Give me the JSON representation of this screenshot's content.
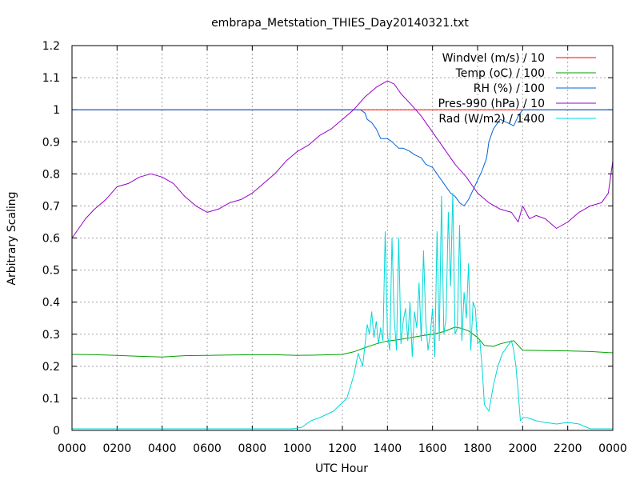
{
  "chart_data": {
    "type": "line",
    "title": "embrapa_Metstation_THIES_Day20140321.txt",
    "xlabel": "UTC Hour",
    "ylabel": "Arbitrary Scaling",
    "xlim": [
      0,
      24
    ],
    "ylim": [
      0,
      1.2
    ],
    "grid": true,
    "legend_position": "top-right",
    "x_ticks": [
      {
        "value": 0,
        "label": "0000"
      },
      {
        "value": 2,
        "label": "0200"
      },
      {
        "value": 4,
        "label": "0400"
      },
      {
        "value": 6,
        "label": "0600"
      },
      {
        "value": 8,
        "label": "0800"
      },
      {
        "value": 10,
        "label": "1000"
      },
      {
        "value": 12,
        "label": "1200"
      },
      {
        "value": 14,
        "label": "1400"
      },
      {
        "value": 16,
        "label": "1600"
      },
      {
        "value": 18,
        "label": "1800"
      },
      {
        "value": 20,
        "label": "2000"
      },
      {
        "value": 22,
        "label": "2200"
      },
      {
        "value": 24,
        "label": "0000"
      }
    ],
    "y_ticks": [
      {
        "value": 0,
        "label": "0"
      },
      {
        "value": 0.1,
        "label": "0.1"
      },
      {
        "value": 0.2,
        "label": "0.2"
      },
      {
        "value": 0.3,
        "label": "0.3"
      },
      {
        "value": 0.4,
        "label": "0.4"
      },
      {
        "value": 0.5,
        "label": "0.5"
      },
      {
        "value": 0.6,
        "label": "0.6"
      },
      {
        "value": 0.7,
        "label": "0.7"
      },
      {
        "value": 0.8,
        "label": "0.8"
      },
      {
        "value": 0.9,
        "label": "0.9"
      },
      {
        "value": 1.0,
        "label": "1"
      },
      {
        "value": 1.1,
        "label": "1.1"
      },
      {
        "value": 1.2,
        "label": "1.2"
      }
    ],
    "series": [
      {
        "name": "Windvel (m/s) / 10",
        "color": "#ff0000",
        "x": [
          0,
          24
        ],
        "y": [
          1.0,
          1.0
        ]
      },
      {
        "name": "Temp (oC) / 100",
        "color": "#00a000",
        "x": [
          0,
          1,
          2,
          3,
          4,
          5,
          6,
          7,
          8,
          9,
          10,
          11,
          12,
          12.5,
          13,
          13.5,
          14,
          14.5,
          15,
          15.5,
          16,
          16.5,
          17,
          17.3,
          17.6,
          18,
          18.3,
          18.7,
          19,
          19.3,
          19.6,
          20,
          21,
          22,
          23,
          24
        ],
        "y": [
          0.237,
          0.236,
          0.234,
          0.231,
          0.229,
          0.233,
          0.234,
          0.235,
          0.236,
          0.236,
          0.234,
          0.235,
          0.237,
          0.245,
          0.258,
          0.27,
          0.279,
          0.283,
          0.289,
          0.295,
          0.3,
          0.308,
          0.322,
          0.318,
          0.31,
          0.29,
          0.265,
          0.262,
          0.27,
          0.275,
          0.28,
          0.25,
          0.249,
          0.248,
          0.246,
          0.242
        ]
      },
      {
        "name": "RH (%) / 100",
        "color": "#0066dd",
        "x": [
          0,
          12.8,
          13.0,
          13.1,
          13.3,
          13.5,
          13.7,
          14.0,
          14.2,
          14.5,
          14.7,
          15.0,
          15.2,
          15.5,
          15.7,
          16.0,
          16.2,
          16.4,
          16.6,
          16.8,
          17.0,
          17.2,
          17.4,
          17.6,
          17.8,
          18.0,
          18.2,
          18.4,
          18.5,
          18.7,
          19.0,
          19.3,
          19.6,
          19.8,
          20.0,
          24
        ],
        "y": [
          1.0,
          1.0,
          0.99,
          0.97,
          0.96,
          0.94,
          0.91,
          0.91,
          0.9,
          0.88,
          0.88,
          0.87,
          0.86,
          0.85,
          0.83,
          0.82,
          0.8,
          0.78,
          0.76,
          0.74,
          0.73,
          0.71,
          0.7,
          0.72,
          0.75,
          0.78,
          0.81,
          0.85,
          0.9,
          0.94,
          0.97,
          0.96,
          0.95,
          0.98,
          1.0,
          1.0
        ]
      },
      {
        "name": "Pres-990 (hPa) / 10",
        "color": "#9900cc",
        "x": [
          0,
          0.3,
          0.6,
          1.0,
          1.5,
          2.0,
          2.5,
          3.0,
          3.5,
          4.0,
          4.5,
          5.0,
          5.5,
          6.0,
          6.5,
          7.0,
          7.5,
          8.0,
          8.5,
          9.0,
          9.5,
          10.0,
          10.5,
          11.0,
          11.5,
          12.0,
          12.5,
          13.0,
          13.5,
          14.0,
          14.3,
          14.6,
          15.0,
          15.5,
          16.0,
          16.5,
          17.0,
          17.5,
          18.0,
          18.5,
          19.0,
          19.5,
          19.8,
          20.0,
          20.3,
          20.6,
          21.0,
          21.5,
          22.0,
          22.5,
          23.0,
          23.5,
          23.8,
          24
        ],
        "y": [
          0.6,
          0.63,
          0.66,
          0.69,
          0.72,
          0.76,
          0.77,
          0.79,
          0.8,
          0.79,
          0.77,
          0.73,
          0.7,
          0.68,
          0.69,
          0.71,
          0.72,
          0.74,
          0.77,
          0.8,
          0.84,
          0.87,
          0.89,
          0.92,
          0.94,
          0.97,
          1.0,
          1.04,
          1.07,
          1.09,
          1.08,
          1.05,
          1.02,
          0.98,
          0.93,
          0.88,
          0.83,
          0.79,
          0.74,
          0.71,
          0.69,
          0.68,
          0.65,
          0.7,
          0.66,
          0.67,
          0.66,
          0.63,
          0.65,
          0.68,
          0.7,
          0.71,
          0.74,
          0.84
        ]
      },
      {
        "name": "Rad (W/m2) / 1400",
        "color": "#00d8d8",
        "x": [
          0,
          9.8,
          10.2,
          10.6,
          11.0,
          11.3,
          11.6,
          11.9,
          12.2,
          12.5,
          12.7,
          12.9,
          13.1,
          13.2,
          13.3,
          13.4,
          13.5,
          13.6,
          13.7,
          13.8,
          13.9,
          14.0,
          14.1,
          14.2,
          14.3,
          14.4,
          14.5,
          14.6,
          14.7,
          14.8,
          14.9,
          15.0,
          15.1,
          15.2,
          15.3,
          15.4,
          15.5,
          15.6,
          15.7,
          15.8,
          15.9,
          16.0,
          16.1,
          16.2,
          16.3,
          16.4,
          16.5,
          16.6,
          16.7,
          16.8,
          16.9,
          17.0,
          17.1,
          17.2,
          17.3,
          17.4,
          17.5,
          17.6,
          17.7,
          17.8,
          17.9,
          18.0,
          18.1,
          18.2,
          18.3,
          18.5,
          18.7,
          18.9,
          19.1,
          19.3,
          19.5,
          19.6,
          19.7,
          19.8,
          19.9,
          20.0,
          20.2,
          20.6,
          21.0,
          21.5,
          22.0,
          22.5,
          23.0,
          24
        ],
        "y": [
          0.005,
          0.005,
          0.01,
          0.03,
          0.04,
          0.05,
          0.06,
          0.08,
          0.1,
          0.17,
          0.24,
          0.2,
          0.33,
          0.3,
          0.37,
          0.29,
          0.34,
          0.27,
          0.32,
          0.28,
          0.62,
          0.3,
          0.25,
          0.6,
          0.35,
          0.25,
          0.6,
          0.27,
          0.34,
          0.38,
          0.28,
          0.4,
          0.23,
          0.37,
          0.32,
          0.46,
          0.28,
          0.56,
          0.34,
          0.25,
          0.3,
          0.38,
          0.23,
          0.62,
          0.28,
          0.73,
          0.3,
          0.35,
          0.68,
          0.45,
          0.74,
          0.3,
          0.32,
          0.64,
          0.28,
          0.43,
          0.35,
          0.52,
          0.25,
          0.4,
          0.38,
          0.27,
          0.28,
          0.2,
          0.08,
          0.06,
          0.14,
          0.2,
          0.24,
          0.26,
          0.28,
          0.25,
          0.2,
          0.12,
          0.03,
          0.04,
          0.04,
          0.03,
          0.025,
          0.02,
          0.025,
          0.02,
          0.005,
          0.005
        ]
      }
    ]
  }
}
